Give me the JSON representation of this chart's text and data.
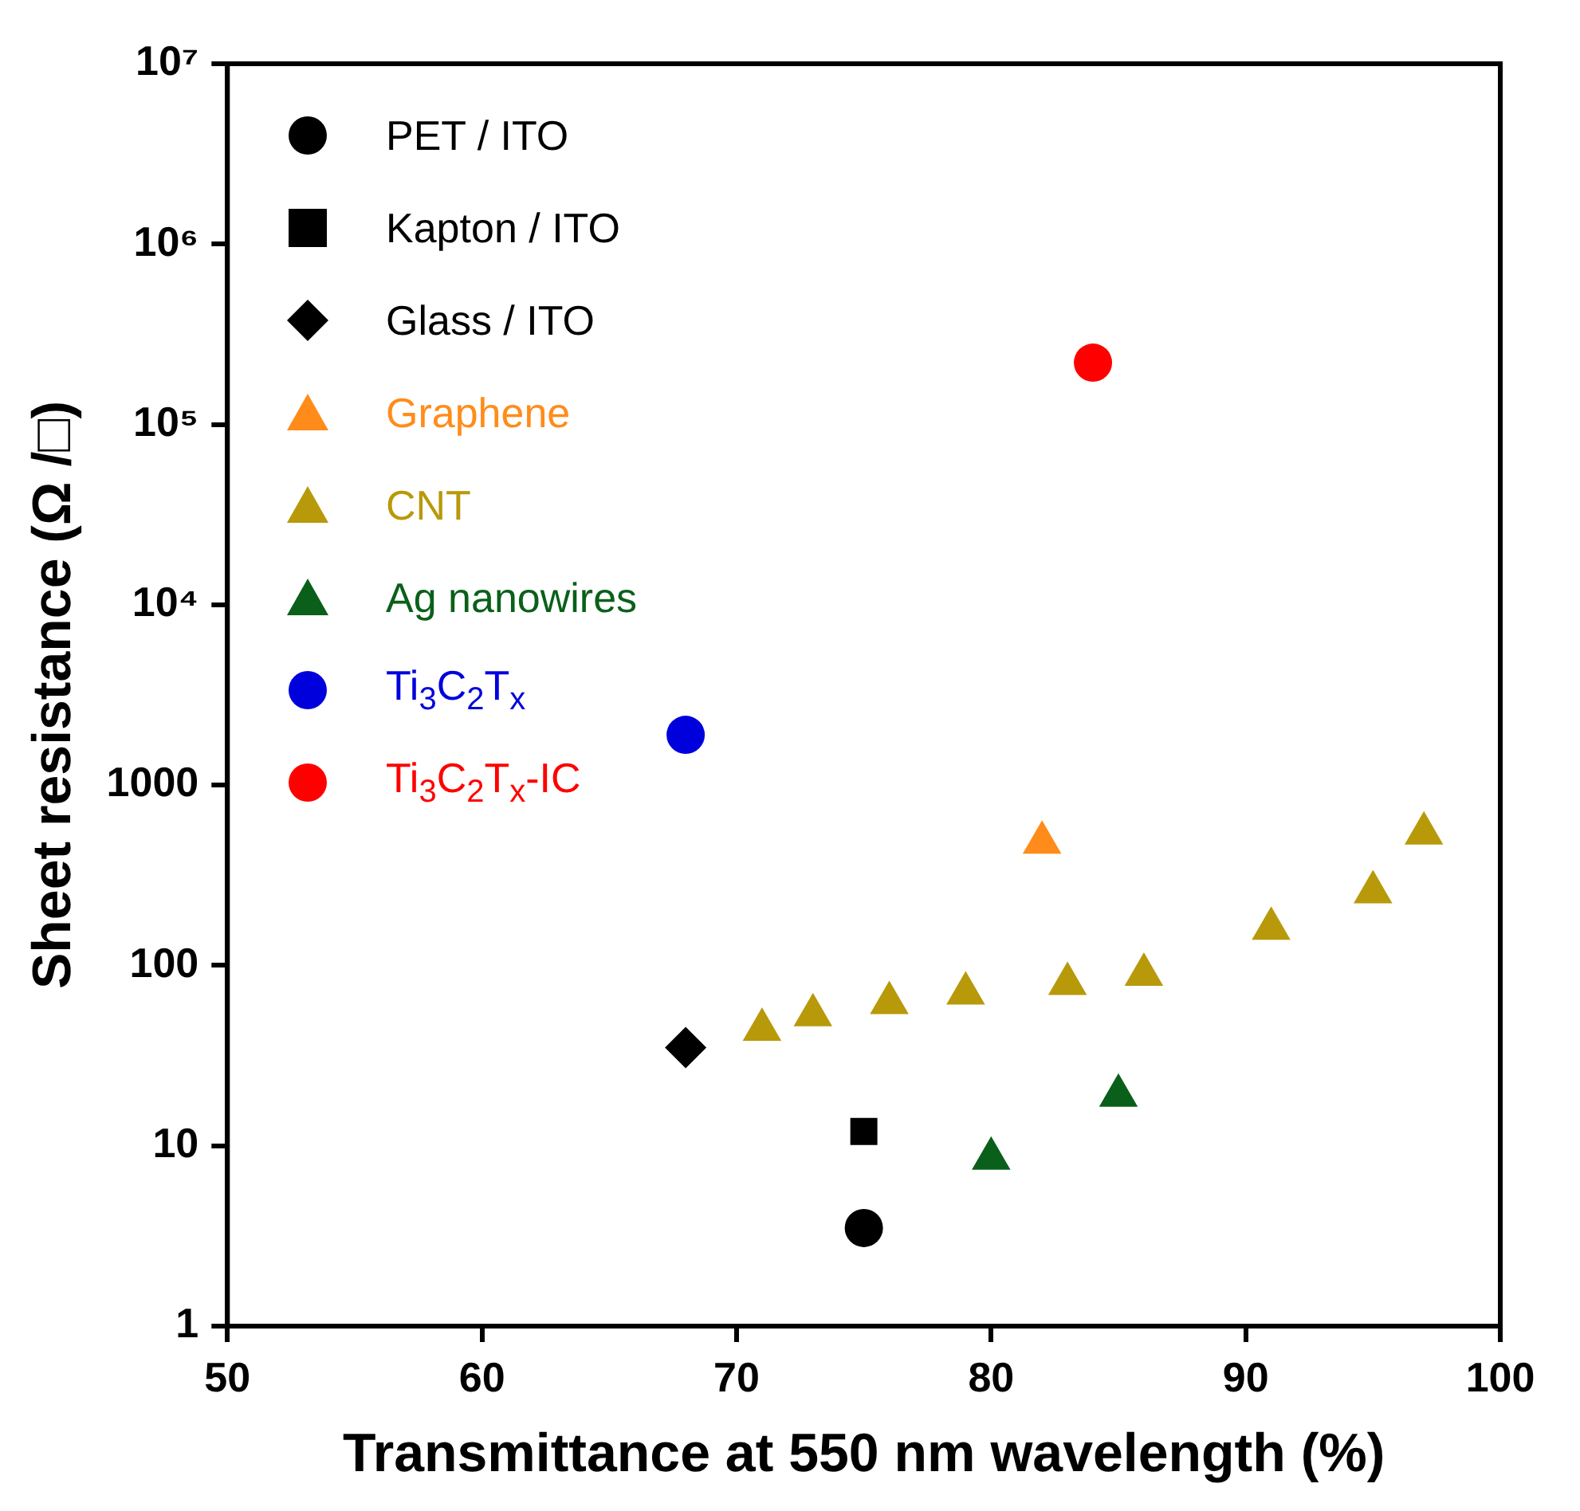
{
  "chart_data": {
    "type": "scatter",
    "xlabel": "Transmittance at 550 nm wavelength (%)",
    "ylabel": "Sheet resistance (Ω /□)",
    "log": "y",
    "grid": false,
    "legend": "top left",
    "xlim": [
      50,
      100
    ],
    "xticks": [
      50,
      60,
      70,
      80,
      90,
      100
    ],
    "ylim": [
      1,
      10000000
    ],
    "yticks": [
      1,
      10,
      100,
      1000,
      {
        "value": 10000,
        "label": "10⁴"
      },
      {
        "value": 100000,
        "label": "10⁵"
      },
      {
        "value": 1000000,
        "label": "10⁶"
      },
      {
        "value": 10000000,
        "label": "10⁷"
      }
    ],
    "series": [
      {
        "name": "PET / ITO",
        "color": "#000000",
        "marker": "circle",
        "x": [
          75
        ],
        "values": [
          3.5
        ]
      },
      {
        "name": "Kapton / ITO",
        "color": "#000000",
        "marker": "square",
        "x": [
          75
        ],
        "values": [
          12
        ]
      },
      {
        "name": "Glass / ITO",
        "color": "#000000",
        "marker": "diamond",
        "x": [
          68
        ],
        "values": [
          35
        ]
      },
      {
        "name": "Graphene",
        "color": "#ff8c1a",
        "marker": "triangle",
        "x": [
          82
        ],
        "values": [
          480
        ]
      },
      {
        "name": "CNT",
        "color": "#b8990a",
        "marker": "triangle",
        "x": [
          71,
          73,
          76,
          79,
          83,
          86,
          91,
          95,
          97
        ],
        "values": [
          44,
          53,
          62,
          70,
          79,
          89,
          160,
          255,
          540
        ]
      },
      {
        "name": "Ag nanowires",
        "color": "#0a601a",
        "marker": "triangle",
        "x": [
          80,
          85
        ],
        "values": [
          8.5,
          19
        ]
      },
      {
        "name": "Ti$_{3}$C$_{2}$T$_{x}$",
        "color": "#0000dd",
        "marker": "circle",
        "x": [
          68
        ],
        "values": [
          1900
        ]
      },
      {
        "name": "Ti$_{3}$C$_{2}$T$_{x}$-IC",
        "color": "#ff0000",
        "marker": "circle",
        "x": [
          84
        ],
        "values": [
          220000
        ]
      }
    ]
  }
}
